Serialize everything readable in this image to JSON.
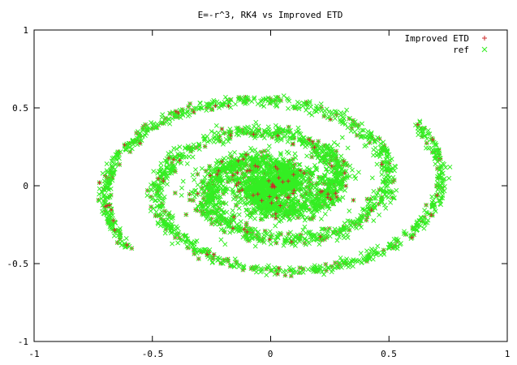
{
  "chart_data": {
    "type": "scatter",
    "title": "E=-r^3, RK4 vs Improved ETD",
    "xlabel": "",
    "ylabel": "",
    "xlim": [
      -1,
      1
    ],
    "ylim": [
      -1,
      1
    ],
    "grid": false,
    "legend_position": "top-right",
    "x_ticks": [
      "-1",
      "-0.5",
      "0",
      "0.5",
      "1"
    ],
    "y_ticks": [
      "1",
      "0.5",
      "0",
      "-0.5",
      "-1"
    ],
    "x_tick_values": [
      -1,
      -0.5,
      0,
      0.5,
      1
    ],
    "y_tick_values": [
      1,
      0.5,
      0,
      -0.5,
      -1
    ],
    "series": [
      {
        "name": "Improved ETD",
        "marker": "+",
        "color": "#cc2a2a"
      },
      {
        "name": "ref",
        "marker": "x",
        "color": "#33ee22"
      }
    ],
    "shape": "Two-armed logarithmic-style spiral centered near (0.01, 0); outer arm reaches about r = 0.75, with a dense cloud near the origin."
  }
}
